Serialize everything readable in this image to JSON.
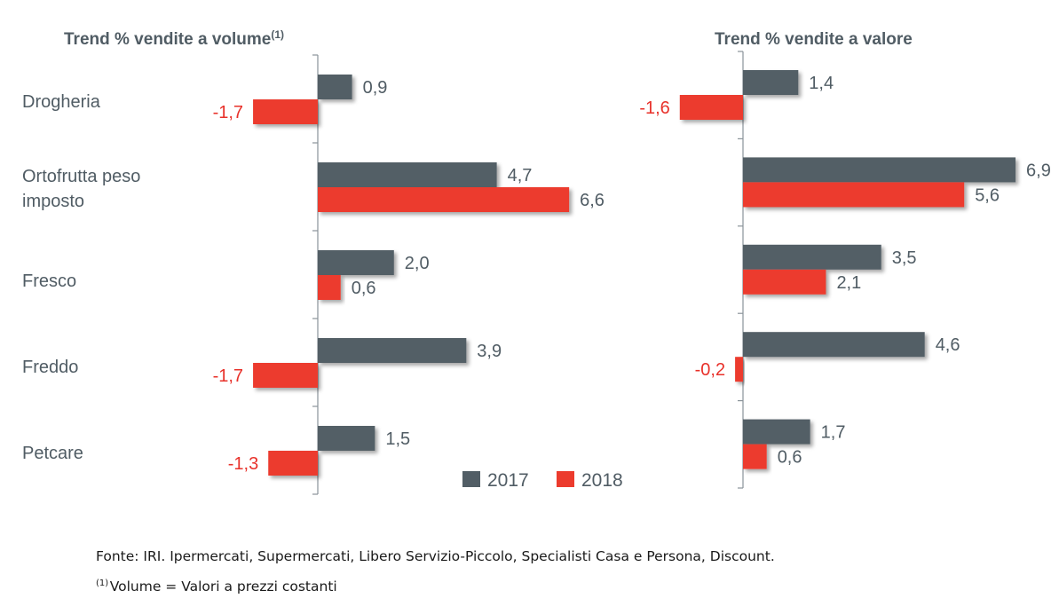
{
  "colors": {
    "series_2017": "#525e66",
    "series_2018": "#ec3b2d",
    "axis": "#8a939a",
    "text": "#505c64",
    "negative_text": "#e8312a"
  },
  "chart_data": [
    {
      "type": "bar",
      "orientation": "horizontal",
      "title": "Trend % vendite a volume",
      "title_footnote_marker": "(1)",
      "categories": [
        "Drogheria",
        "Ortofrutta peso imposto",
        "Fresco",
        "Freddo",
        "Petcare"
      ],
      "category_lines": [
        [
          "Drogheria"
        ],
        [
          "Ortofrutta peso",
          "imposto"
        ],
        [
          "Fresco"
        ],
        [
          "Freddo"
        ],
        [
          "Petcare"
        ]
      ],
      "series": [
        {
          "name": "2017",
          "values": [
            0.9,
            4.7,
            2.0,
            3.9,
            1.5
          ],
          "labels": [
            "0,9",
            "4,7",
            "2,0",
            "3,9",
            "1,5"
          ]
        },
        {
          "name": "2018",
          "values": [
            -1.7,
            6.6,
            0.6,
            -1.7,
            -1.3
          ],
          "labels": [
            "-1,7",
            "6,6",
            "0,6",
            "-1,7",
            "-1,3"
          ]
        }
      ],
      "xlabel": "",
      "ylabel": "",
      "grid": false,
      "legend": "bottom-right"
    },
    {
      "type": "bar",
      "orientation": "horizontal",
      "title": "Trend % vendite a valore",
      "categories": [
        "Drogheria",
        "Ortofrutta peso imposto",
        "Fresco",
        "Freddo",
        "Petcare"
      ],
      "series": [
        {
          "name": "2017",
          "values": [
            1.4,
            6.9,
            3.5,
            4.6,
            1.7
          ],
          "labels": [
            "1,4",
            "6,9",
            "3,5",
            "4,6",
            "1,7"
          ]
        },
        {
          "name": "2018",
          "values": [
            -1.6,
            5.6,
            2.1,
            -0.2,
            0.6
          ],
          "labels": [
            "-1,6",
            "5,6",
            "2,1",
            "-0,2",
            "0,6"
          ]
        }
      ],
      "xlabel": "",
      "ylabel": "",
      "grid": false,
      "legend": "none"
    }
  ],
  "legend": {
    "items": [
      {
        "label": "2017"
      },
      {
        "label": "2018"
      }
    ]
  },
  "footnotes": {
    "source": "Fonte: IRI. Ipermercati, Supermercati, Libero Servizio-Piccolo, Specialisti Casa e Persona, Discount.",
    "note_marker": "(1)",
    "note_text": "Volume = Valori a prezzi costanti"
  }
}
